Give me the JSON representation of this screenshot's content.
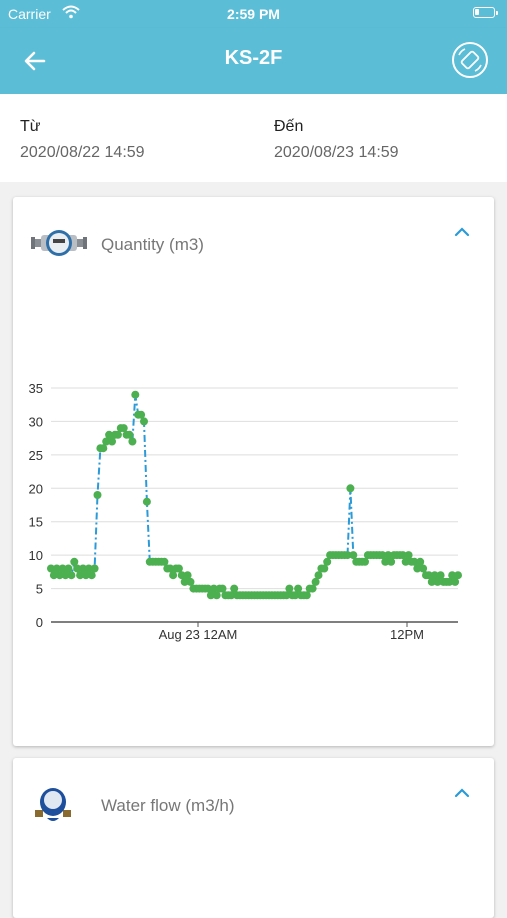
{
  "status_bar": {
    "carrier": "Carrier",
    "time": "2:59 PM"
  },
  "navbar": {
    "title": "KS-2F",
    "back_icon": "arrow-left-icon",
    "action_icon": "screen-rotation-icon"
  },
  "date_range": {
    "from_label": "Từ",
    "from_value": "2020/08/22 14:59",
    "to_label": "Đến",
    "to_value": "2020/08/23 14:59"
  },
  "cards": [
    {
      "title": "Quantity (m3)",
      "icon": "water-meter-icon",
      "expanded": true
    },
    {
      "title": "Water flow (m3/h)",
      "icon": "blue-water-meter-icon",
      "expanded": true
    }
  ],
  "colors": {
    "header": "#5bbdd6",
    "line": "#2a9ad8",
    "points": "#4caf50",
    "chevron": "#2a9ad8"
  },
  "chart_data": {
    "type": "line",
    "title": "",
    "ylim": [
      0,
      35
    ],
    "y_ticks": [
      0,
      5,
      10,
      15,
      20,
      25,
      30,
      35
    ],
    "x_ticks": [
      "Aug 23 12AM",
      "12PM"
    ],
    "grid": true,
    "series": [
      {
        "values": [
          8,
          7,
          8,
          7,
          8,
          7,
          8,
          7,
          9,
          8,
          7,
          8,
          7,
          8,
          7,
          8,
          19,
          26,
          26,
          27,
          28,
          27,
          28,
          28,
          29,
          29,
          28,
          28,
          27,
          34,
          31,
          31,
          30,
          18,
          9,
          9,
          9,
          9,
          9,
          9,
          8,
          8,
          7,
          8,
          8,
          7,
          6,
          7,
          6,
          5,
          5,
          5,
          5,
          5,
          5,
          4,
          5,
          4,
          5,
          5,
          4,
          4,
          4,
          5,
          4,
          4,
          4,
          4,
          4,
          4,
          4,
          4,
          4,
          4,
          4,
          4,
          4,
          4,
          4,
          4,
          4,
          4,
          5,
          4,
          4,
          5,
          4,
          4,
          4,
          5,
          5,
          6,
          7,
          8,
          8,
          9,
          10,
          10,
          10,
          10,
          10,
          10,
          10,
          20,
          10,
          9,
          9,
          9,
          9,
          10,
          10,
          10,
          10,
          10,
          10,
          9,
          10,
          9,
          10,
          10,
          10,
          10,
          9,
          10,
          9,
          9,
          8,
          9,
          8,
          7,
          7,
          6,
          7,
          6,
          7,
          6,
          6,
          6,
          7,
          6,
          7
        ]
      }
    ]
  }
}
